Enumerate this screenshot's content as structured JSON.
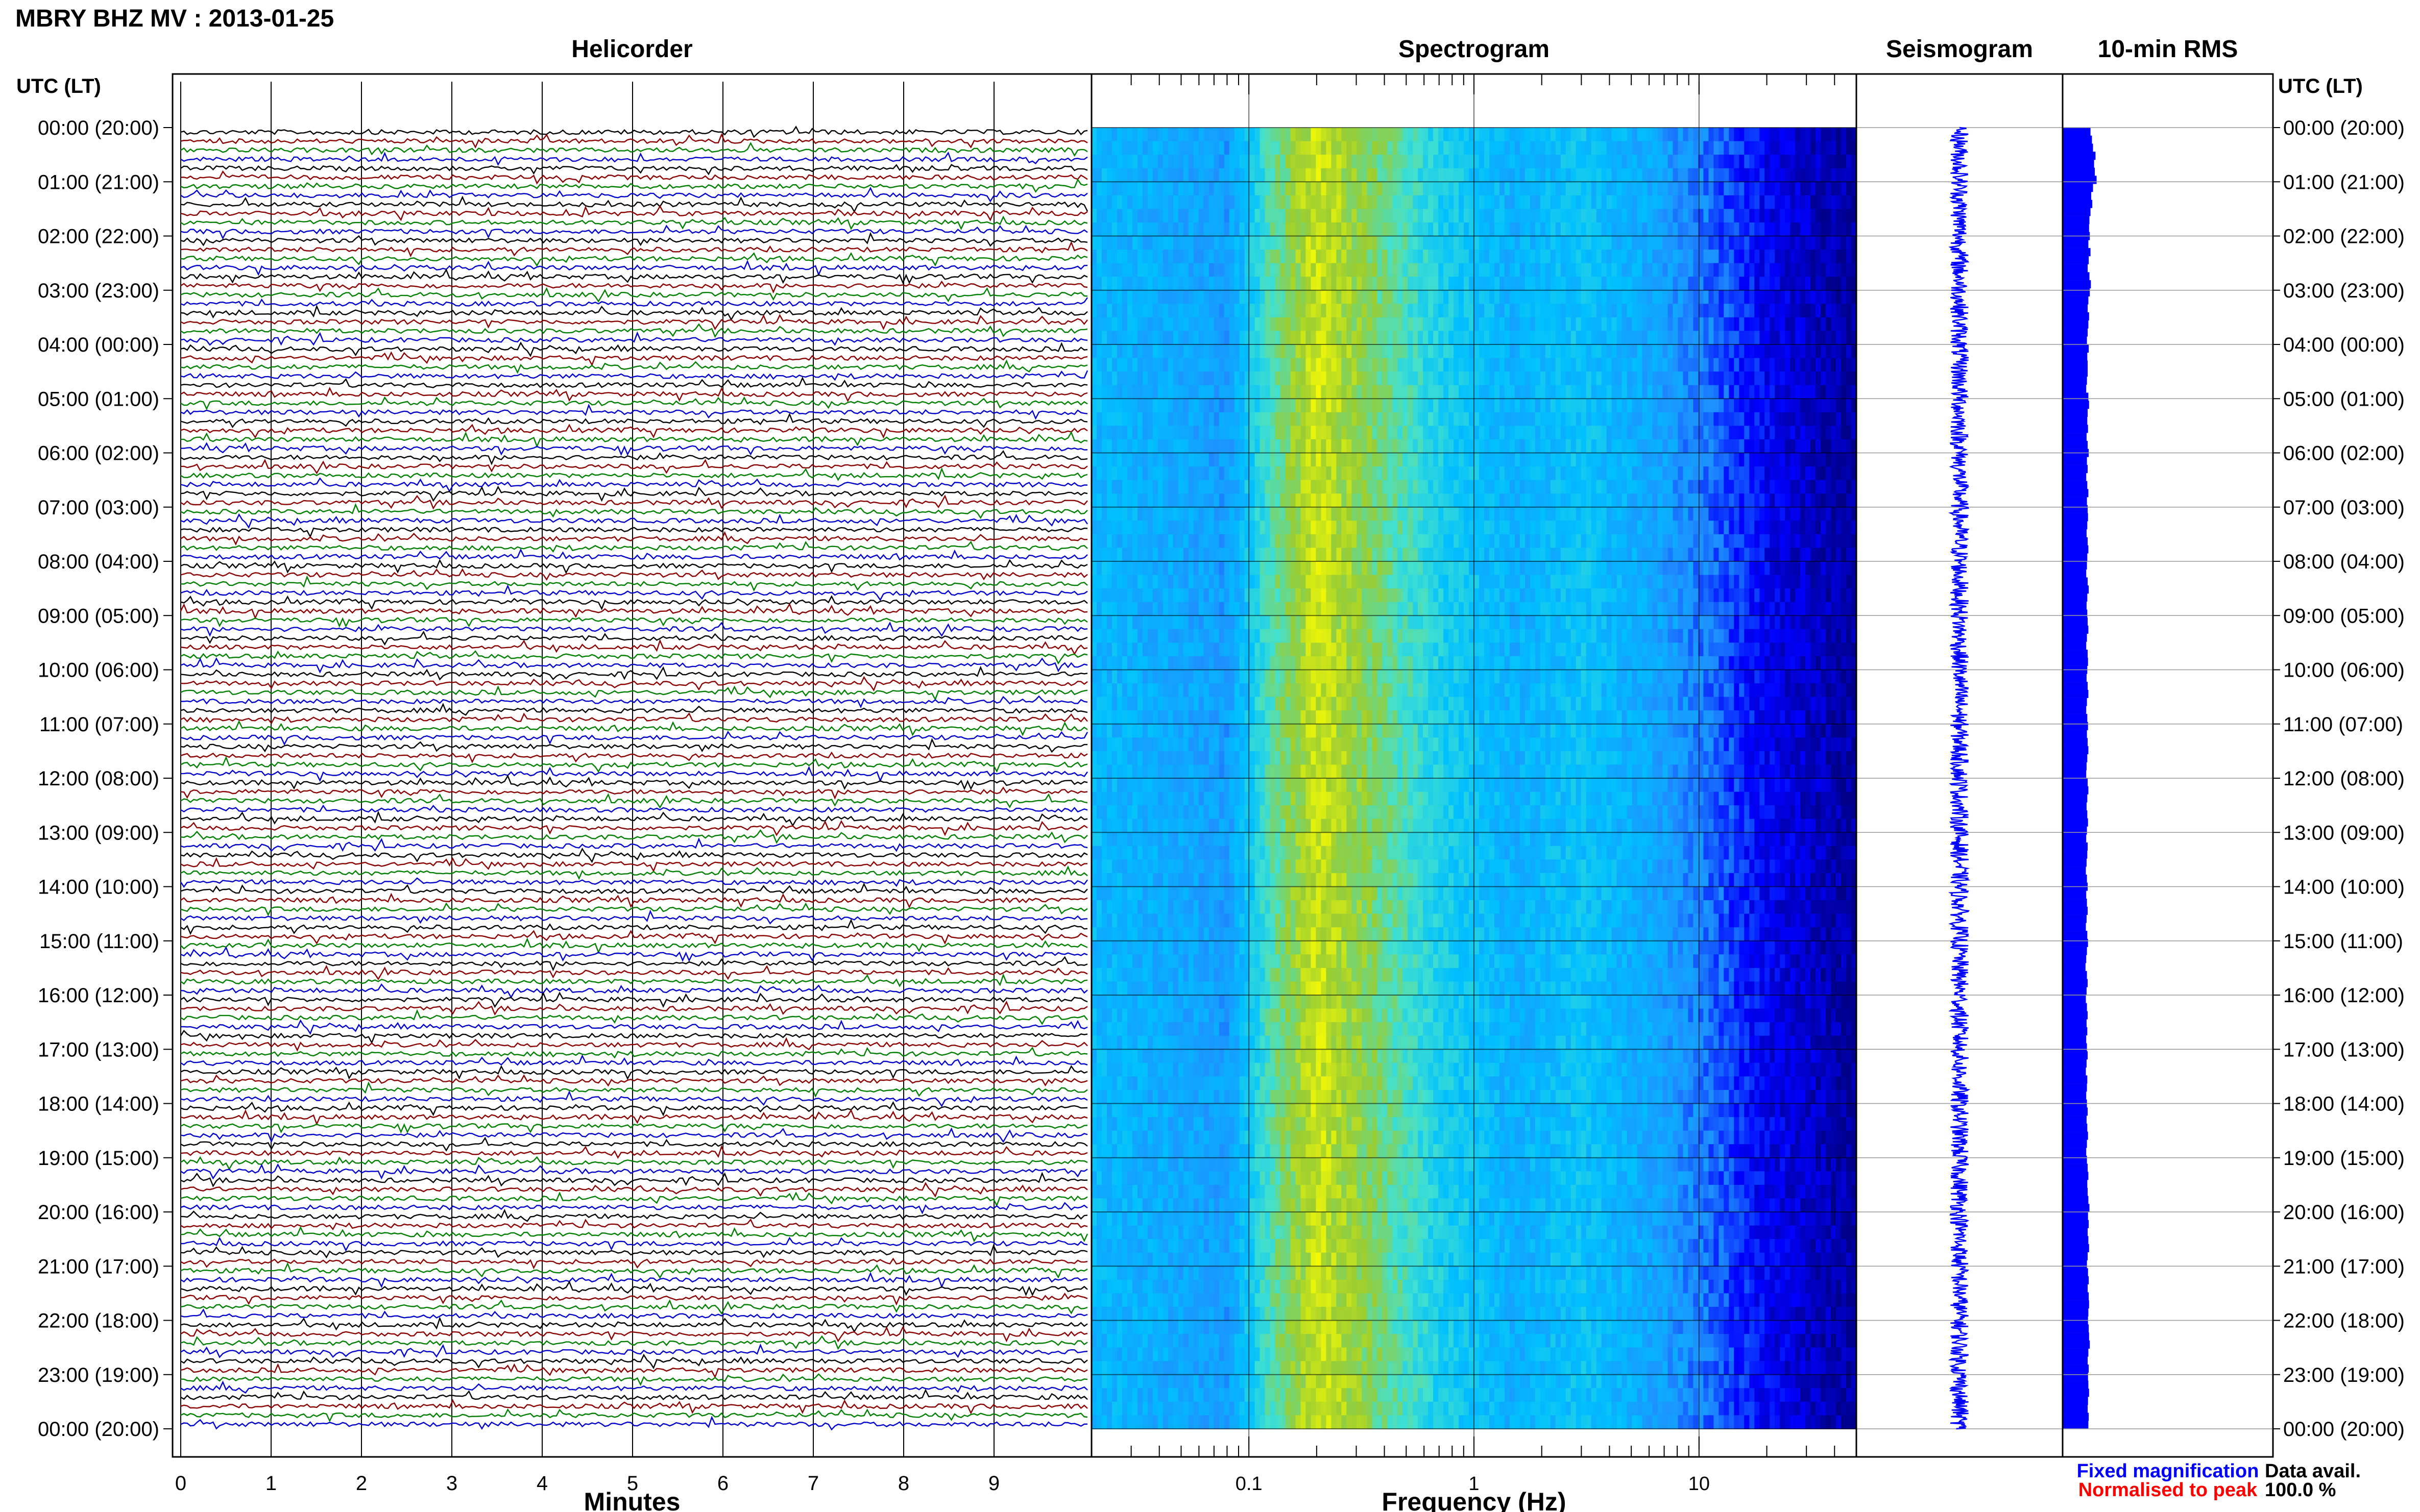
{
  "title": "MBRY BHZ MV : 2013-01-25",
  "left_axis_label": "UTC (LT)",
  "right_axis_label": "UTC (LT)",
  "panels": {
    "helicorder": {
      "title": "Helicorder",
      "xlabel": "Minutes"
    },
    "spectrogram": {
      "title": "Spectrogram",
      "xlabel": "Frequency (Hz)"
    },
    "seismogram": {
      "title": "Seismogram"
    },
    "rms": {
      "title": "10-min RMS"
    }
  },
  "legend": {
    "fixed": {
      "label": "Fixed magnification",
      "color": "#0000ff"
    },
    "normalised": {
      "label": "Normalised to peak",
      "color": "#ff0000"
    }
  },
  "data_availability": {
    "label": "Data avail.",
    "value": "100.0 %"
  },
  "chart_data": [
    {
      "type": "line",
      "name": "helicorder",
      "title": "Helicorder",
      "xlabel": "Minutes",
      "x_ticks": [
        "0",
        "1",
        "2",
        "3",
        "4",
        "5",
        "6",
        "7",
        "8",
        "9"
      ],
      "xlim": [
        0,
        10
      ],
      "rows_per_hour": 6,
      "row_colors": [
        "#000000",
        "#8b0000",
        "#008000",
        "#0000cd"
      ],
      "y_tick_labels": [
        "00:00 (20:00)",
        "01:00 (21:00)",
        "02:00 (22:00)",
        "03:00 (23:00)",
        "04:00 (00:00)",
        "05:00 (01:00)",
        "06:00 (02:00)",
        "07:00 (03:00)",
        "08:00 (04:00)",
        "09:00 (05:00)",
        "10:00 (06:00)",
        "11:00 (07:00)",
        "12:00 (08:00)",
        "13:00 (09:00)",
        "14:00 (10:00)",
        "15:00 (11:00)",
        "16:00 (12:00)",
        "17:00 (13:00)",
        "18:00 (14:00)",
        "19:00 (15:00)",
        "20:00 (16:00)",
        "21:00 (17:00)",
        "22:00 (18:00)",
        "23:00 (19:00)",
        "00:00 (20:00)"
      ]
    },
    {
      "type": "heatmap",
      "name": "spectrogram",
      "title": "Spectrogram",
      "xlabel": "Frequency (Hz)",
      "x_scale": "log",
      "xlim": [
        0.02,
        50
      ],
      "x_ticks": [
        0.1,
        1,
        10
      ],
      "x_tick_labels": [
        "0.1",
        "1",
        "10"
      ],
      "colormap": [
        "#00008b",
        "#0000ff",
        "#1e90ff",
        "#00bfff",
        "#40e0d0",
        "#9acd32",
        "#ffff00"
      ],
      "profile": [
        {
          "f": 0.02,
          "level": 0.48
        },
        {
          "f": 0.05,
          "level": 0.42
        },
        {
          "f": 0.08,
          "level": 0.38
        },
        {
          "f": 0.13,
          "level": 0.72
        },
        {
          "f": 0.2,
          "level": 0.92
        },
        {
          "f": 0.35,
          "level": 0.78
        },
        {
          "f": 0.7,
          "level": 0.58
        },
        {
          "f": 1.5,
          "level": 0.45
        },
        {
          "f": 3,
          "level": 0.52
        },
        {
          "f": 6,
          "level": 0.42
        },
        {
          "f": 10,
          "level": 0.32
        },
        {
          "f": 20,
          "level": 0.15
        },
        {
          "f": 50,
          "level": 0.02
        }
      ]
    },
    {
      "type": "line",
      "name": "seismogram",
      "title": "Seismogram",
      "color": "#0000ff",
      "rows_per_hour": 6
    },
    {
      "type": "bar",
      "name": "rms",
      "title": "10-min RMS",
      "color": "#0000ff",
      "orientation": "horizontal",
      "bins_per_hour": 6,
      "values": [
        0.78,
        0.82,
        0.85,
        0.92,
        0.88,
        0.9,
        0.95,
        0.85,
        0.8,
        0.83,
        0.78,
        0.75,
        0.74,
        0.76,
        0.72,
        0.78,
        0.73,
        0.7,
        0.75,
        0.79,
        0.76,
        0.72,
        0.7,
        0.74,
        0.72,
        0.7,
        0.68,
        0.73,
        0.69,
        0.7,
        0.7,
        0.68,
        0.66,
        0.72,
        0.74,
        0.7,
        0.69,
        0.71,
        0.67,
        0.7,
        0.73,
        0.68,
        0.7,
        0.66,
        0.69,
        0.72,
        0.68,
        0.7,
        0.71,
        0.69,
        0.67,
        0.7,
        0.72,
        0.69,
        0.68,
        0.66,
        0.7,
        0.73,
        0.69,
        0.67,
        0.69,
        0.7,
        0.72,
        0.68,
        0.66,
        0.7,
        0.71,
        0.69,
        0.67,
        0.7,
        0.72,
        0.68,
        0.66,
        0.69,
        0.71,
        0.68,
        0.7,
        0.72,
        0.69,
        0.67,
        0.66,
        0.7,
        0.72,
        0.69,
        0.67,
        0.69,
        0.71,
        0.68,
        0.66,
        0.7,
        0.69,
        0.67,
        0.65,
        0.68,
        0.7,
        0.66,
        0.68,
        0.7,
        0.67,
        0.65,
        0.69,
        0.71,
        0.68,
        0.66,
        0.64,
        0.68,
        0.7,
        0.67,
        0.65,
        0.68,
        0.7,
        0.67,
        0.69,
        0.66,
        0.68,
        0.7,
        0.67,
        0.65,
        0.69,
        0.68,
        0.66,
        0.68,
        0.7,
        0.67,
        0.69,
        0.71,
        0.68,
        0.66,
        0.68,
        0.7,
        0.72,
        0.69,
        0.7,
        0.72,
        0.75,
        0.71,
        0.73,
        0.7,
        0.72,
        0.74,
        0.7,
        0.68,
        0.71,
        0.73,
        0.7,
        0.73,
        0.74,
        0.72,
        0.71,
        0.73,
        0.74,
        0.76,
        0.72,
        0.7,
        0.73,
        0.71,
        0.72,
        0.74,
        0.71,
        0.7,
        0.73,
        0.72
      ]
    }
  ]
}
